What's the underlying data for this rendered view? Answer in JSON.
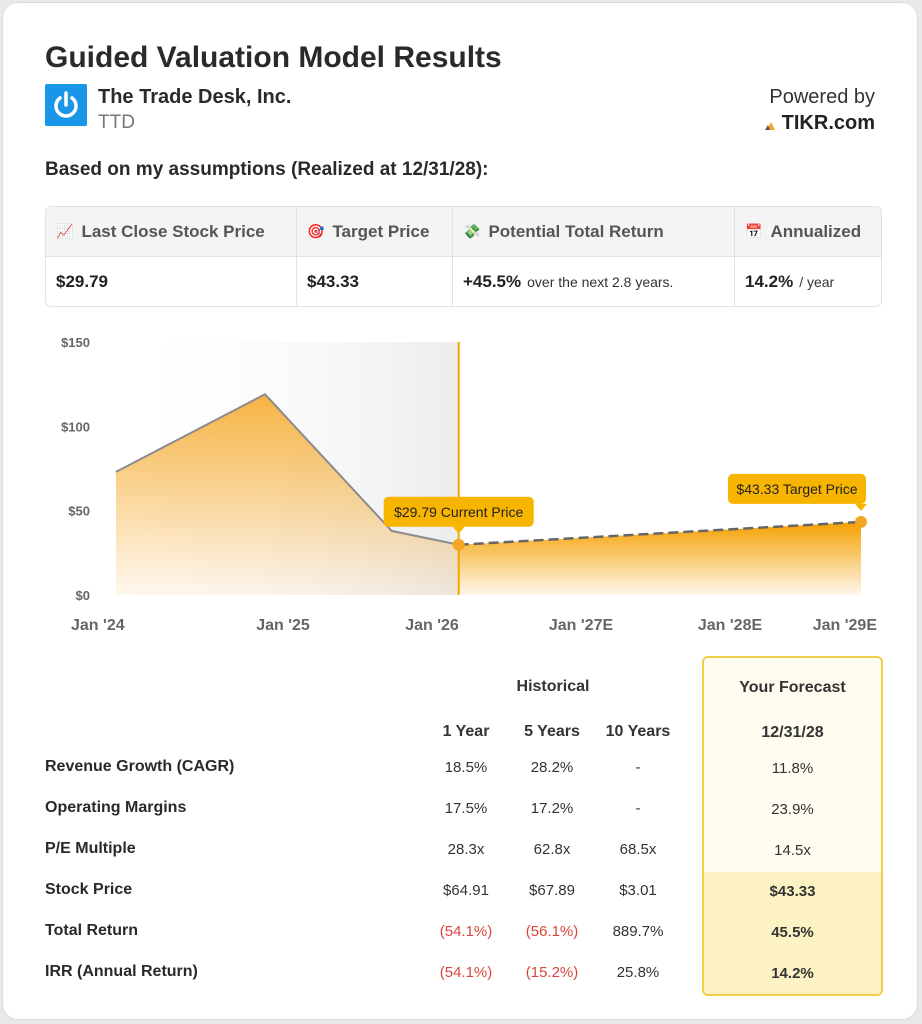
{
  "header": {
    "title": "Guided Valuation Model Results",
    "company_name": "The Trade Desk, Inc.",
    "ticker": "TTD",
    "powered_by": "Powered by",
    "brand": "TIKR.com",
    "logo_icon": "power-icon",
    "logo_color": "#1a96e8"
  },
  "subtitle": "Based on my assumptions (Realized at 12/31/28):",
  "summary": {
    "cols": [
      {
        "icon": "chart-up-icon",
        "emoji": "📈",
        "label": "Last Close Stock Price",
        "value": "$29.79",
        "suffix": ""
      },
      {
        "icon": "target-icon",
        "emoji": "🎯",
        "label": "Target Price",
        "value": "$43.33",
        "suffix": ""
      },
      {
        "icon": "money-wings-icon",
        "emoji": "💸",
        "label": "Potential Total Return",
        "value": "+45.5%",
        "suffix": "over the next 2.8 years."
      },
      {
        "icon": "calendar-icon",
        "emoji": "📅",
        "label": "Annualized",
        "value": "14.2%",
        "suffix": "/ year"
      }
    ]
  },
  "chart_data": {
    "type": "area",
    "x_ticks": [
      "Jan '24",
      "Jan '25",
      "Jan '26",
      "Jan '27E",
      "Jan '28E",
      "Jan '29E"
    ],
    "y_ticks": [
      "$150",
      "$100",
      "$50",
      "$0"
    ],
    "ylim": [
      0,
      150
    ],
    "historical": {
      "x": [
        2024.0,
        2025.0,
        2025.85,
        2026.3
      ],
      "y": [
        73,
        119,
        38,
        29.79
      ]
    },
    "forecast": {
      "x": [
        2026.3,
        2029.0
      ],
      "y": [
        29.79,
        43.33
      ]
    },
    "annotations": {
      "current": "$29.79 Current Price",
      "target": "$43.33 Target Price"
    },
    "colors": {
      "accent": "#f5a623",
      "line": "#8c8c8c",
      "divider": "#f0a500"
    }
  },
  "table": {
    "historical_title": "Historical",
    "forecast_title": "Your Forecast",
    "columns": [
      "1 Year",
      "5 Years",
      "10 Years"
    ],
    "forecast_date": "12/31/28",
    "rows": [
      {
        "label": "Revenue Growth (CAGR)",
        "values": [
          "18.5%",
          "28.2%",
          "-"
        ],
        "forecast": "11.8%"
      },
      {
        "label": "Operating Margins",
        "values": [
          "17.5%",
          "17.2%",
          "-"
        ],
        "forecast": "23.9%"
      },
      {
        "label": "P/E Multiple",
        "values": [
          "28.3x",
          "62.8x",
          "68.5x"
        ],
        "forecast": "14.5x"
      },
      {
        "label": "Stock Price",
        "values": [
          "$64.91",
          "$67.89",
          "$3.01"
        ],
        "forecast": "$43.33"
      },
      {
        "label": "Total Return",
        "values": [
          "(54.1%)",
          "(56.1%)",
          "889.7%"
        ],
        "forecast": "45.5%"
      },
      {
        "label": "IRR (Annual Return)",
        "values": [
          "(54.1%)",
          "(15.2%)",
          "25.8%"
        ],
        "forecast": "14.2%"
      }
    ],
    "negative_color": "#d9463b",
    "forecast_highlight": "#fdf2c4"
  }
}
